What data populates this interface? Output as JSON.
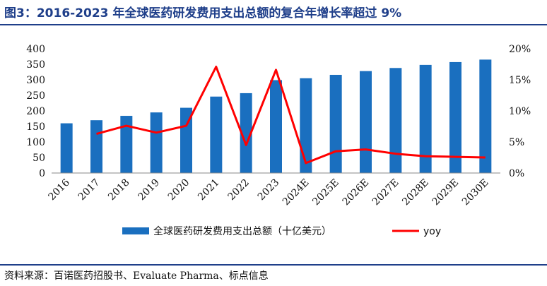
{
  "title": "图3：2016-2023 年全球医药研发费用支出总额的复合年增长率超过 9%",
  "source": "资料来源：百诺医药招股书、Evaluate Pharma、标点信息",
  "colors": {
    "bar": "#1a6fbf",
    "line": "#ff0000",
    "title": "#1f3f8a"
  },
  "chart_data": {
    "type": "bar",
    "categories": [
      "2016",
      "2017",
      "2018",
      "2019",
      "2020",
      "2021",
      "2022",
      "2023",
      "2024E",
      "2025E",
      "2026E",
      "2027E",
      "2028E",
      "2029E",
      "2030E"
    ],
    "series": [
      {
        "name": "全球医药研发费用支出总额（十亿美元）",
        "type": "bar",
        "axis": "left",
        "values": [
          160,
          170,
          184,
          195,
          210,
          246,
          257,
          299,
          305,
          316,
          328,
          338,
          348,
          357,
          365
        ]
      },
      {
        "name": "yoy",
        "type": "line",
        "axis": "right",
        "values": [
          null,
          6.3,
          7.6,
          6.5,
          7.6,
          17.1,
          4.5,
          16.6,
          1.6,
          3.5,
          3.8,
          3.1,
          2.7,
          2.6,
          2.5
        ]
      }
    ],
    "y_left": {
      "ylim": [
        0,
        400
      ],
      "ticks": [
        "0",
        "50",
        "100",
        "150",
        "200",
        "250",
        "300",
        "350",
        "400"
      ]
    },
    "y_right": {
      "ylim": [
        0,
        20
      ],
      "ticks": [
        "0%",
        "5%",
        "10%",
        "15%",
        "20%"
      ]
    },
    "grid": false,
    "legend": "bottom"
  }
}
